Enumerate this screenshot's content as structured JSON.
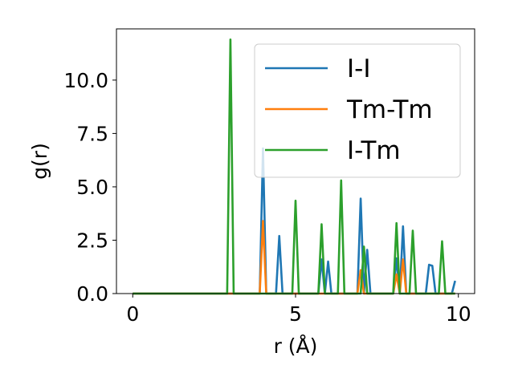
{
  "chart_data": {
    "type": "line",
    "xlabel": "r (Å)",
    "ylabel": "g(r)",
    "xlim": [
      -0.5,
      10.5
    ],
    "ylim": [
      0,
      12.4
    ],
    "xticks": [
      0,
      5,
      10
    ],
    "xtick_labels": [
      "0",
      "5",
      "10"
    ],
    "yticks": [
      0,
      2.5,
      5,
      7.5,
      10
    ],
    "ytick_labels": [
      "0.0",
      "2.5",
      "5.0",
      "7.5",
      "10.0"
    ],
    "grid": false,
    "legend_position": "top-right",
    "series": [
      {
        "name": "I-I",
        "color": "#1f77b4",
        "points": [
          [
            0,
            0
          ],
          [
            3.8,
            0
          ],
          [
            3.9,
            0
          ],
          [
            4.0,
            6.8
          ],
          [
            4.1,
            0
          ],
          [
            4.4,
            0
          ],
          [
            4.5,
            2.7
          ],
          [
            4.6,
            0
          ],
          [
            5.7,
            0
          ],
          [
            5.8,
            1.6
          ],
          [
            5.9,
            0
          ],
          [
            6.0,
            1.5
          ],
          [
            6.1,
            0
          ],
          [
            6.9,
            0
          ],
          [
            7.0,
            4.45
          ],
          [
            7.1,
            0
          ],
          [
            7.2,
            2.05
          ],
          [
            7.3,
            0
          ],
          [
            8.0,
            0
          ],
          [
            8.1,
            1.65
          ],
          [
            8.2,
            0
          ],
          [
            8.3,
            3.15
          ],
          [
            8.4,
            0
          ],
          [
            9.0,
            0
          ],
          [
            9.1,
            1.35
          ],
          [
            9.2,
            1.3
          ],
          [
            9.3,
            0
          ],
          [
            9.8,
            0
          ],
          [
            9.9,
            0.6
          ]
        ]
      },
      {
        "name": "Tm-Tm",
        "color": "#ff7f0e",
        "points": [
          [
            0,
            0
          ],
          [
            3.9,
            0
          ],
          [
            4.0,
            3.4
          ],
          [
            4.1,
            0
          ],
          [
            6.9,
            0
          ],
          [
            7.0,
            1.1
          ],
          [
            7.1,
            0
          ],
          [
            8.0,
            0
          ],
          [
            8.1,
            0.9
          ],
          [
            8.2,
            0
          ],
          [
            8.3,
            1.6
          ],
          [
            8.4,
            0
          ],
          [
            9.9,
            0
          ]
        ]
      },
      {
        "name": "I-Tm",
        "color": "#2ca02c",
        "points": [
          [
            0,
            0
          ],
          [
            2.9,
            0
          ],
          [
            3.0,
            11.9
          ],
          [
            3.1,
            0
          ],
          [
            4.9,
            0
          ],
          [
            5.0,
            4.35
          ],
          [
            5.1,
            0
          ],
          [
            5.7,
            0
          ],
          [
            5.8,
            3.25
          ],
          [
            5.9,
            0
          ],
          [
            6.3,
            0
          ],
          [
            6.4,
            5.3
          ],
          [
            6.5,
            0
          ],
          [
            7.0,
            0
          ],
          [
            7.1,
            2.2
          ],
          [
            7.2,
            0
          ],
          [
            8.0,
            0
          ],
          [
            8.1,
            3.3
          ],
          [
            8.2,
            0
          ],
          [
            8.5,
            0
          ],
          [
            8.6,
            2.95
          ],
          [
            8.7,
            0
          ],
          [
            9.4,
            0
          ],
          [
            9.5,
            2.45
          ],
          [
            9.6,
            0
          ],
          [
            9.9,
            0
          ]
        ]
      }
    ]
  }
}
